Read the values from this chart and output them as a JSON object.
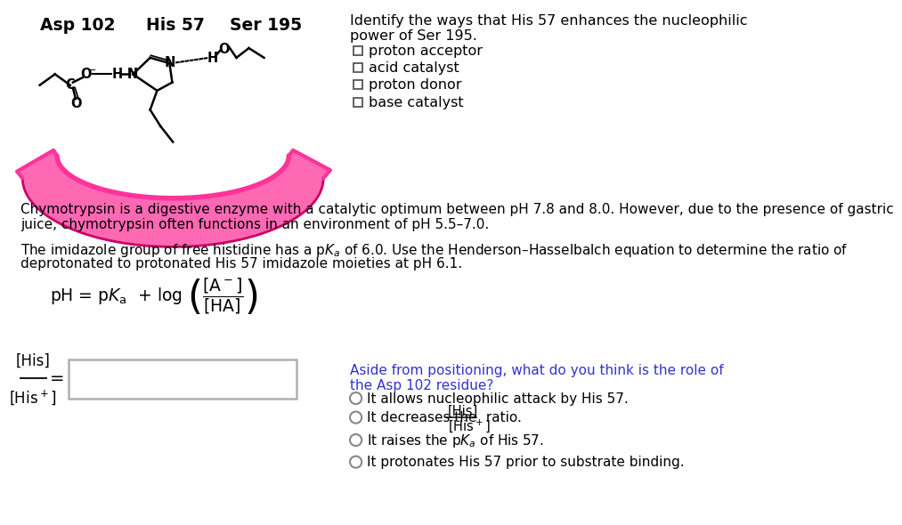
{
  "bg_color": "#ffffff",
  "asp102_label": "Asp 102",
  "his57_label": "His 57",
  "ser195_label": "Ser 195",
  "identify_q_line1": "Identify the ways that His 57 enhances the nucleophilic",
  "identify_q_line2": "power of Ser 195.",
  "checkbox_options": [
    "proton acceptor",
    "acid catalyst",
    "proton donor",
    "base catalyst"
  ],
  "paragraph1_line1": "Chymotrypsin is a digestive enzyme with a catalytic optimum between pH 7.8 and 8.0. However, due to the presence of gastric",
  "paragraph1_line2": "juice, chymotrypsin often functions in an environment of pH 5.5–7.0.",
  "paragraph2_line1": "The imidazole group of free histidine has a p$K_a$ of 6.0. Use the Henderson–Hasselbalch equation to determine the ratio of",
  "paragraph2_line2": "deprotonated to protonated His 57 imidazole moieties at pH 6.1.",
  "aside_q_line1": "Aside from positioning, what do you think is the role of",
  "aside_q_line2": "the Asp 102 residue?",
  "radio_opt1": "It allows nucleophilic attack by His 57.",
  "radio_opt2_pre": "It decreases the",
  "radio_opt2_num": "[His]",
  "radio_opt2_den": "[His",
  "radio_opt2_den2": "+]",
  "radio_opt2_suf": "ratio.",
  "radio_opt3": "It raises the p$K_a$ of His 57.",
  "radio_opt4": "It protonates His 57 prior to substrate binding.",
  "pink_main": "#FF3399",
  "pink_light": "#FF69B4",
  "pink_dark": "#CC0066",
  "black": "#000000",
  "gray_box": "#b0b0b0",
  "blue_q": "#3333cc",
  "text_dark": "#1a1a1a"
}
